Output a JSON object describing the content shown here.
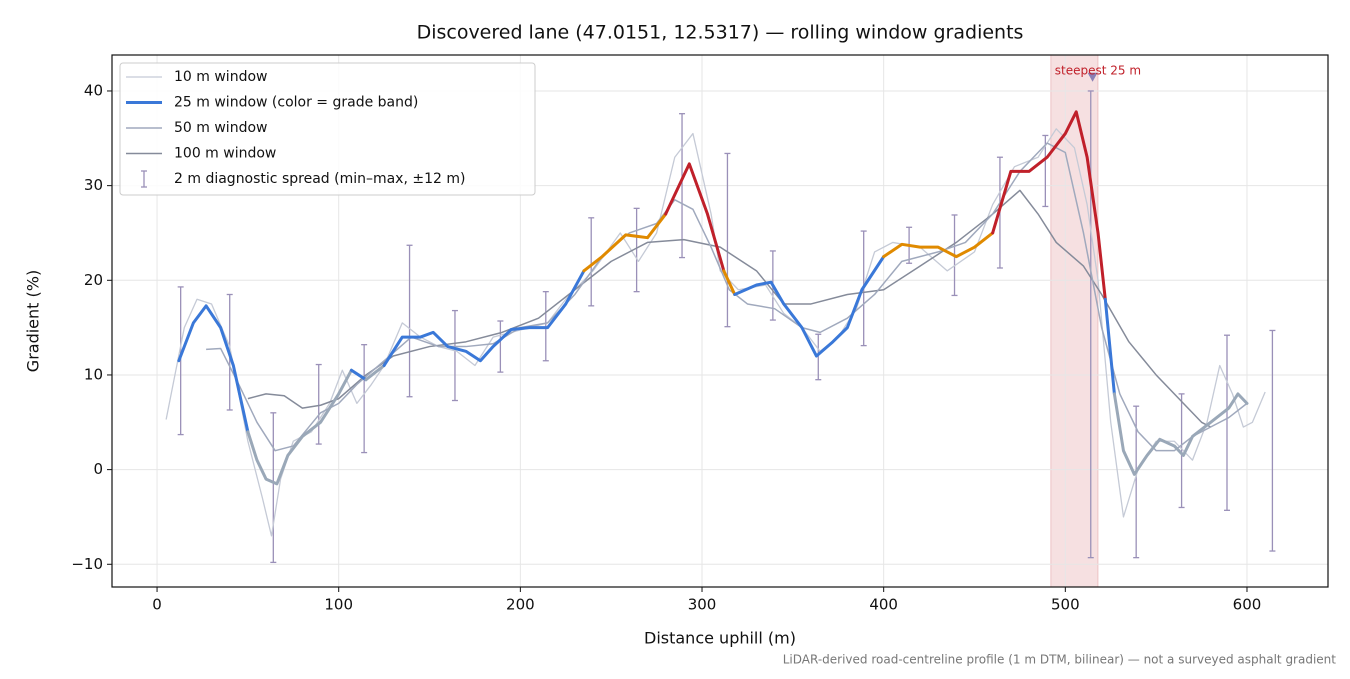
{
  "chart_data": {
    "type": "line",
    "title": "Discovered lane (47.0151, 12.5317) — rolling window gradients",
    "xlabel": "Distance uphill (m)",
    "ylabel": "Gradient (%)",
    "footnote": "LiDAR-derived road-centreline profile (1 m DTM, bilinear) — not a surveyed asphalt gradient",
    "xlim": [
      -24.8,
      644.6
    ],
    "ylim": [
      -12.4,
      43.8
    ],
    "xticks": [
      0,
      100,
      200,
      300,
      400,
      500,
      600
    ],
    "yticks": [
      {
        "value": -10,
        "label": "−10"
      },
      0,
      10,
      20,
      30,
      40
    ],
    "grid": true,
    "legend": "upper left",
    "series": [
      {
        "name": "10 m window",
        "color": "#c5cad6",
        "x": [
          5,
          15,
          22,
          30,
          40,
          50,
          58,
          63,
          68,
          75,
          85,
          95,
          102,
          110,
          118,
          125,
          135,
          145,
          155,
          165,
          175,
          185,
          195,
          205,
          215,
          225,
          240,
          255,
          265,
          275,
          285,
          295,
          305,
          310,
          320,
          335,
          345,
          355,
          365,
          375,
          385,
          395,
          405,
          420,
          435,
          450,
          460,
          472,
          485,
          495,
          505,
          512,
          518,
          525,
          532,
          540,
          550,
          560,
          570,
          578,
          585,
          592,
          598,
          603,
          610
        ],
        "values": [
          5.3,
          15,
          18,
          17.5,
          13,
          3,
          -3,
          -7,
          -1,
          3,
          4,
          7,
          10.5,
          7,
          9,
          11,
          15.5,
          14,
          13,
          12.5,
          11,
          14,
          14.5,
          15,
          15.5,
          18,
          21,
          25,
          22,
          25,
          33,
          35.5,
          27,
          21,
          19,
          19.5,
          16.5,
          15,
          12.5,
          14,
          17,
          23,
          24,
          23.5,
          21,
          23,
          28,
          32,
          33,
          36,
          34,
          28,
          20,
          5,
          -5,
          0,
          3,
          3,
          1,
          5,
          11,
          8,
          4.5,
          5,
          8.2
        ]
      },
      {
        "name": "25 m window (color = grade band)",
        "color": "#3a78d8",
        "grade_bands": [
          {
            "from": -100,
            "color": "#9aa8b8"
          },
          {
            "from": 10,
            "color": "#3a78d8"
          },
          {
            "from": 20,
            "color": "#e08a00"
          },
          {
            "from": 25,
            "color": "#c0202a"
          }
        ],
        "x": [
          12,
          20,
          27,
          35,
          42,
          50,
          55,
          60,
          66,
          72,
          80,
          90,
          100,
          107,
          115,
          125,
          135,
          145,
          152,
          160,
          170,
          178,
          185,
          195,
          205,
          215,
          225,
          235,
          245,
          258,
          270,
          280,
          293,
          303,
          312,
          318,
          330,
          338,
          345,
          355,
          363,
          372,
          380,
          388,
          400,
          410,
          420,
          430,
          440,
          450,
          460,
          470,
          480,
          490,
          500,
          506,
          512,
          518,
          522,
          527,
          532,
          538,
          545,
          552,
          560,
          565,
          570,
          580,
          590,
          595,
          600
        ],
        "values": [
          11.5,
          15.5,
          17.3,
          15,
          11,
          4,
          1,
          -1,
          -1.5,
          1.5,
          3.5,
          5,
          8,
          10.5,
          9.5,
          11,
          14,
          14,
          14.5,
          13,
          12.5,
          11.5,
          13,
          14.8,
          15,
          15,
          17.5,
          21,
          22.5,
          24.8,
          24.5,
          27,
          32.3,
          27,
          21,
          18.5,
          19.5,
          19.8,
          17.5,
          15,
          12,
          13.5,
          15,
          19,
          22.5,
          23.8,
          23.5,
          23.5,
          22.5,
          23.5,
          25,
          31.5,
          31.5,
          33,
          35.5,
          37.8,
          33,
          25,
          18,
          8,
          2,
          -0.5,
          1.5,
          3.2,
          2.5,
          1.5,
          3.5,
          5,
          6.5,
          8,
          7
        ]
      },
      {
        "name": "50 m window",
        "color": "#a0a9bd",
        "x": [
          27,
          35,
          45,
          55,
          65,
          75,
          90,
          100,
          110,
          125,
          140,
          155,
          170,
          185,
          200,
          215,
          230,
          245,
          260,
          275,
          285,
          295,
          305,
          315,
          325,
          340,
          355,
          365,
          380,
          395,
          410,
          430,
          445,
          460,
          475,
          490,
          500,
          510,
          520,
          530,
          540,
          550,
          560,
          570,
          580,
          590,
          600
        ],
        "values": [
          12.7,
          12.8,
          9,
          5,
          2,
          2.5,
          6,
          7,
          9,
          11.5,
          14,
          13,
          13,
          13.3,
          15,
          15.5,
          18.5,
          22.5,
          25,
          26,
          28.5,
          27.5,
          23.5,
          19,
          17.5,
          17,
          15,
          14.5,
          16,
          18.5,
          22,
          23,
          24,
          27,
          31.5,
          34.5,
          33.5,
          25,
          15,
          8,
          4,
          2,
          2,
          3.5,
          4.5,
          5.5,
          7
        ]
      },
      {
        "name": "100 m window",
        "color": "#858b9a",
        "x": [
          50,
          60,
          70,
          80,
          90,
          100,
          115,
          130,
          150,
          170,
          190,
          210,
          230,
          250,
          270,
          290,
          310,
          330,
          345,
          360,
          380,
          400,
          420,
          440,
          460,
          475,
          485,
          495,
          510,
          520,
          535,
          550,
          565,
          575,
          580
        ],
        "values": [
          7.5,
          8,
          7.8,
          6.5,
          6.8,
          7.5,
          10,
          12,
          13,
          13.5,
          14.5,
          16,
          19,
          22,
          24,
          24.3,
          23.5,
          21,
          17.5,
          17.5,
          18.5,
          19,
          21.5,
          24,
          27,
          29.5,
          27,
          24,
          21.5,
          18.5,
          13.5,
          10,
          7,
          5,
          4.5
        ]
      }
    ],
    "spread": {
      "name": "2 m diagnostic spread (min–max, ±12 m)",
      "color": "#9a90b8",
      "x": [
        13,
        40,
        64,
        89,
        114,
        139,
        164,
        189,
        214,
        239,
        264,
        289,
        314,
        339,
        364,
        389,
        414,
        439,
        464,
        489,
        514,
        539,
        564,
        589,
        614
      ],
      "low": [
        3.7,
        6.3,
        -9.8,
        2.7,
        1.8,
        7.7,
        7.3,
        10.3,
        11.5,
        17.3,
        18.8,
        22.4,
        15.1,
        15.8,
        9.5,
        13.1,
        21.8,
        18.4,
        21.3,
        27.8,
        -9.3,
        -9.3,
        -4.0,
        -4.3,
        -8.6
      ],
      "high": [
        19.3,
        18.5,
        6.0,
        11.1,
        13.2,
        23.7,
        16.8,
        15.7,
        18.8,
        26.6,
        27.6,
        37.6,
        33.4,
        23.1,
        14.3,
        25.2,
        25.6,
        26.9,
        33.0,
        35.3,
        40.0,
        6.7,
        8.0,
        14.2,
        14.7
      ]
    },
    "steepest": {
      "label": "steepest 25 m",
      "x_range": [
        492,
        518
      ],
      "x": 515,
      "y": 41.5,
      "color": "#c0202a"
    }
  }
}
